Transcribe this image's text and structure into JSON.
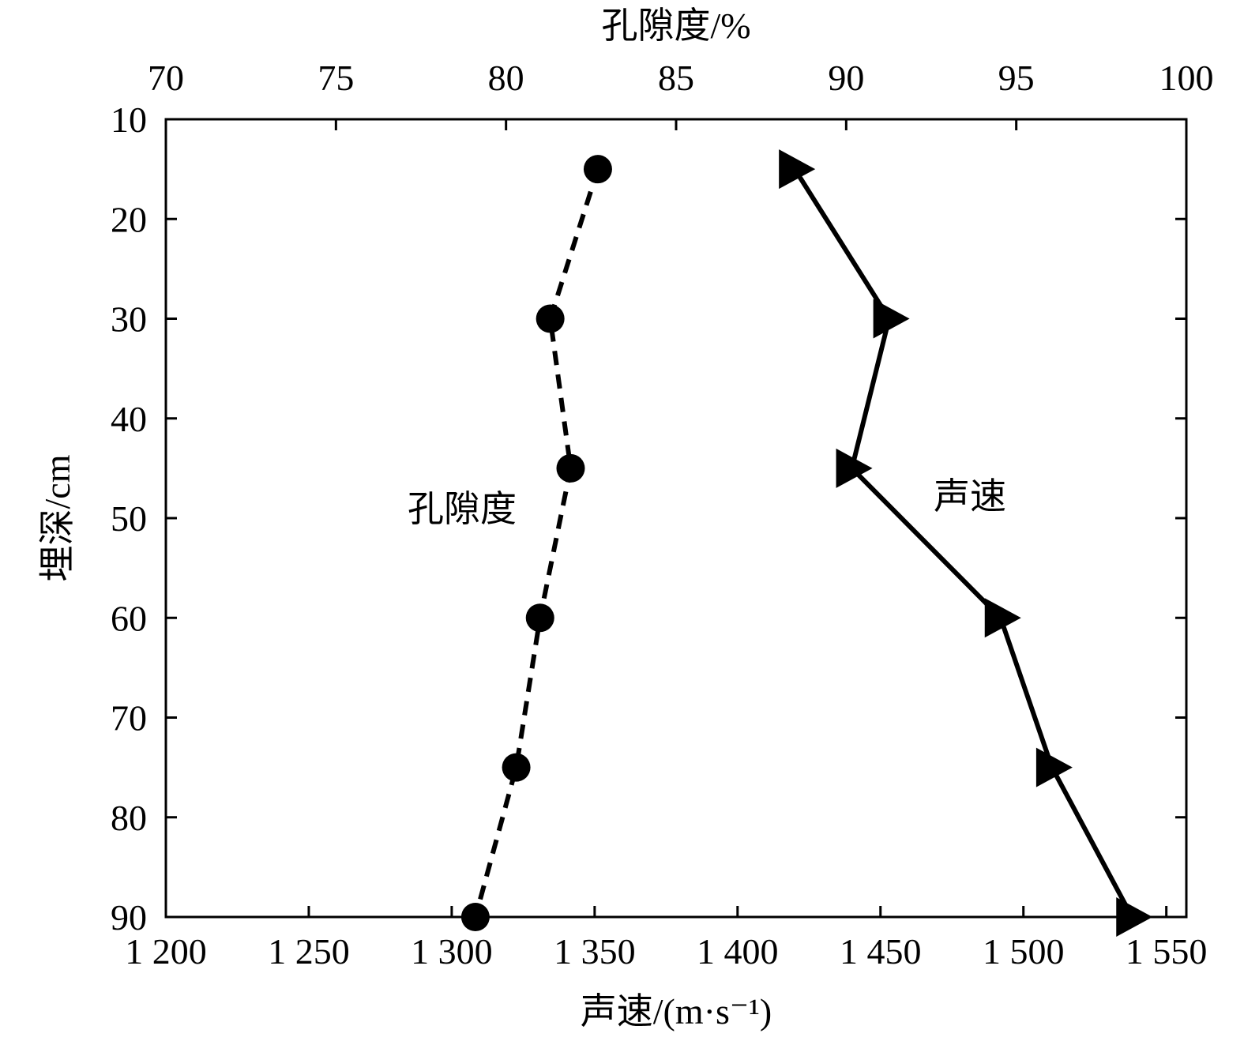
{
  "chart_data": {
    "type": "line",
    "axes": {
      "top": {
        "label": "孔隙度/%",
        "range": [
          70,
          100
        ],
        "ticks": [
          70,
          75,
          80,
          85,
          90,
          95,
          100
        ],
        "tick_labels": [
          "70",
          "75",
          "80",
          "85",
          "90",
          "95",
          "100"
        ]
      },
      "bottom": {
        "label": "声速/(m·s⁻¹)",
        "range": [
          1200,
          1557
        ],
        "ticks": [
          1200,
          1250,
          1300,
          1350,
          1400,
          1450,
          1500,
          1550
        ],
        "tick_labels": [
          "1 200",
          "1 250",
          "1 300",
          "1 350",
          "1 400",
          "1 450",
          "1 500",
          "1 550"
        ]
      },
      "left": {
        "label": "埋深/cm",
        "range": [
          10,
          90
        ],
        "inverted": true,
        "ticks": [
          10,
          20,
          30,
          40,
          50,
          60,
          70,
          80,
          90
        ],
        "tick_labels": [
          "10",
          "20",
          "30",
          "40",
          "50",
          "60",
          "70",
          "80",
          "90"
        ]
      }
    },
    "series": [
      {
        "name": "孔隙度",
        "x_axis": "top",
        "line_style": "dashed",
        "marker": "circle",
        "color": "#000000",
        "points": [
          {
            "x": 82.7,
            "y": 15
          },
          {
            "x": 81.3,
            "y": 30
          },
          {
            "x": 81.9,
            "y": 45
          },
          {
            "x": 81.0,
            "y": 60
          },
          {
            "x": 80.3,
            "y": 75
          },
          {
            "x": 79.1,
            "y": 90
          }
        ]
      },
      {
        "name": "声速",
        "x_axis": "bottom",
        "line_style": "solid",
        "marker": "triangle-right",
        "color": "#000000",
        "points": [
          {
            "x": 1420,
            "y": 15
          },
          {
            "x": 1453,
            "y": 30
          },
          {
            "x": 1440,
            "y": 45
          },
          {
            "x": 1492,
            "y": 60
          },
          {
            "x": 1510,
            "y": 75
          },
          {
            "x": 1538,
            "y": 90
          }
        ]
      }
    ],
    "grid": false,
    "legend": "none"
  }
}
